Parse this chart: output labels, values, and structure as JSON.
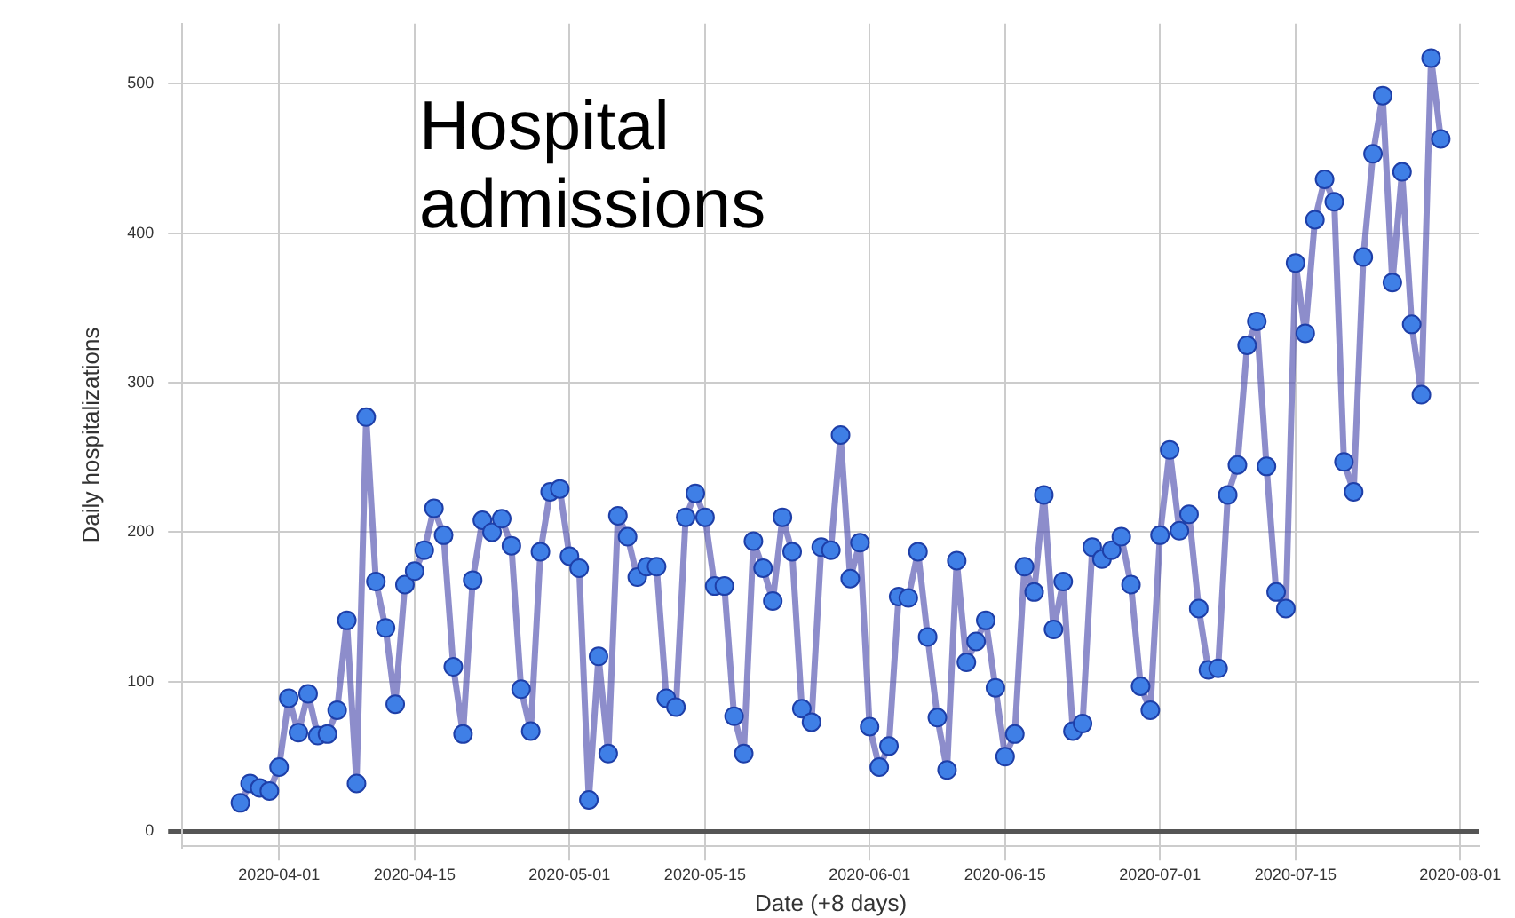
{
  "chart_data": {
    "type": "line",
    "xlabel": "Date (+8 days)",
    "ylabel": "Daily hospitalizations",
    "annotations": [
      "Hospital admissions"
    ],
    "xlim": [
      "2020-03-22",
      "2020-08-03"
    ],
    "xticks": [
      "2020-04-01",
      "2020-04-15",
      "2020-05-01",
      "2020-05-15",
      "2020-06-01",
      "2020-06-15",
      "2020-07-01",
      "2020-07-15",
      "2020-08-01"
    ],
    "ylim": [
      -10,
      540
    ],
    "yticks": [
      0,
      100,
      200,
      300,
      400,
      500
    ],
    "grid": true,
    "legend": false,
    "marker": "circle",
    "line_style": "solid",
    "x": [
      "2020-03-28",
      "2020-03-29",
      "2020-03-30",
      "2020-03-31",
      "2020-04-01",
      "2020-04-02",
      "2020-04-03",
      "2020-04-04",
      "2020-04-05",
      "2020-04-06",
      "2020-04-07",
      "2020-04-08",
      "2020-04-09",
      "2020-04-10",
      "2020-04-11",
      "2020-04-12",
      "2020-04-13",
      "2020-04-14",
      "2020-04-15",
      "2020-04-16",
      "2020-04-17",
      "2020-04-18",
      "2020-04-19",
      "2020-04-20",
      "2020-04-21",
      "2020-04-22",
      "2020-04-23",
      "2020-04-24",
      "2020-04-25",
      "2020-04-26",
      "2020-04-27",
      "2020-04-28",
      "2020-04-29",
      "2020-04-30",
      "2020-05-01",
      "2020-05-02",
      "2020-05-03",
      "2020-05-04",
      "2020-05-05",
      "2020-05-06",
      "2020-05-07",
      "2020-05-08",
      "2020-05-09",
      "2020-05-10",
      "2020-05-11",
      "2020-05-12",
      "2020-05-13",
      "2020-05-14",
      "2020-05-15",
      "2020-05-16",
      "2020-05-17",
      "2020-05-18",
      "2020-05-19",
      "2020-05-20",
      "2020-05-21",
      "2020-05-22",
      "2020-05-23",
      "2020-05-24",
      "2020-05-25",
      "2020-05-26",
      "2020-05-27",
      "2020-05-28",
      "2020-05-29",
      "2020-05-30",
      "2020-05-31",
      "2020-06-01",
      "2020-06-02",
      "2020-06-03",
      "2020-06-04",
      "2020-06-05",
      "2020-06-06",
      "2020-06-07",
      "2020-06-08",
      "2020-06-09",
      "2020-06-10",
      "2020-06-11",
      "2020-06-12",
      "2020-06-13",
      "2020-06-14",
      "2020-06-15",
      "2020-06-16",
      "2020-06-17",
      "2020-06-18",
      "2020-06-19",
      "2020-06-20",
      "2020-06-21",
      "2020-06-22",
      "2020-06-23",
      "2020-06-24",
      "2020-06-25",
      "2020-06-26",
      "2020-06-27",
      "2020-06-28",
      "2020-06-29",
      "2020-06-30",
      "2020-07-01",
      "2020-07-02",
      "2020-07-03",
      "2020-07-04",
      "2020-07-05",
      "2020-07-06",
      "2020-07-07",
      "2020-07-08",
      "2020-07-09",
      "2020-07-10",
      "2020-07-11",
      "2020-07-12",
      "2020-07-13",
      "2020-07-14",
      "2020-07-15",
      "2020-07-16",
      "2020-07-17",
      "2020-07-18",
      "2020-07-19",
      "2020-07-20",
      "2020-07-21",
      "2020-07-22",
      "2020-07-23",
      "2020-07-24",
      "2020-07-25",
      "2020-07-26",
      "2020-07-27",
      "2020-07-28",
      "2020-07-29",
      "2020-07-30"
    ],
    "series": [
      {
        "color": "#3f7fe6",
        "values": [
          19,
          32,
          29,
          27,
          43,
          89,
          66,
          92,
          64,
          65,
          81,
          141,
          32,
          277,
          167,
          136,
          85,
          165,
          174,
          188,
          216,
          198,
          110,
          65,
          168,
          208,
          200,
          209,
          191,
          95,
          67,
          187,
          227,
          229,
          184,
          176,
          21,
          117,
          52,
          211,
          197,
          170,
          177,
          177,
          89,
          83,
          210,
          226,
          210,
          164,
          164,
          77,
          52,
          194,
          176,
          154,
          210,
          187,
          82,
          73,
          190,
          188,
          265,
          169,
          193,
          70,
          43,
          57,
          157,
          156,
          187,
          130,
          76,
          41,
          181,
          113,
          127,
          141,
          96,
          50,
          65,
          177,
          160,
          225,
          135,
          167,
          67,
          72,
          190,
          182,
          188,
          197,
          165,
          97,
          81,
          198,
          255,
          201,
          212,
          149,
          108,
          109,
          225,
          245,
          325,
          341,
          244,
          160,
          149,
          380,
          333,
          409,
          436,
          421,
          247,
          227,
          384,
          453,
          492,
          367,
          441,
          339,
          292,
          517,
          463
        ]
      }
    ]
  }
}
